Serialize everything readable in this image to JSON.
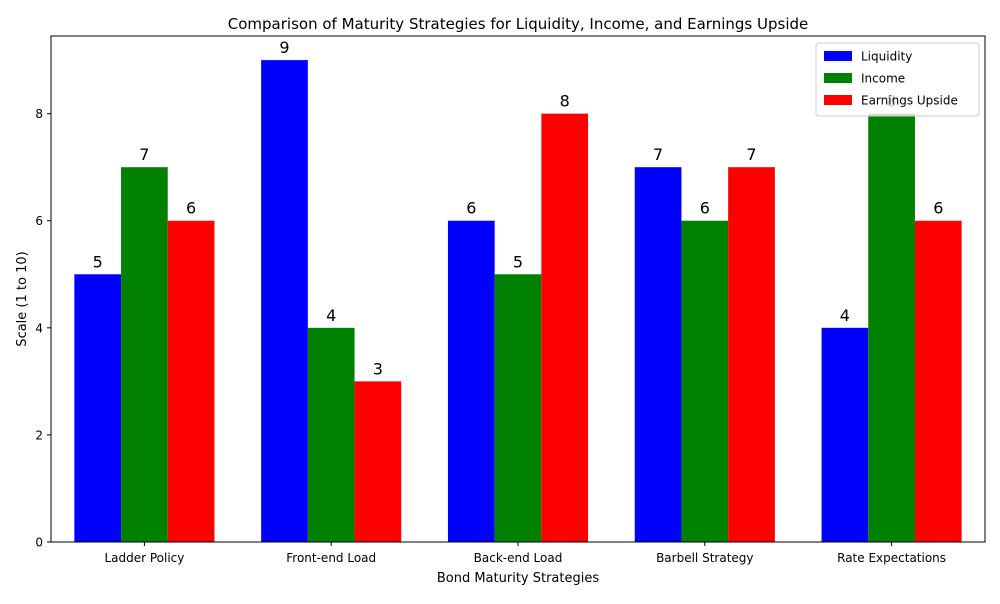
{
  "chart_data": {
    "type": "bar",
    "title": "Comparison of Maturity Strategies for Liquidity, Income, and Earnings Upside",
    "xlabel": "Bond Maturity Strategies",
    "ylabel": "Scale (1 to 10)",
    "categories": [
      "Ladder Policy",
      "Front-end Load",
      "Back-end Load",
      "Barbell Strategy",
      "Rate Expectations"
    ],
    "series": [
      {
        "name": "Liquidity",
        "color": "#0000ff",
        "values": [
          5,
          9,
          6,
          7,
          4
        ]
      },
      {
        "name": "Income",
        "color": "#008000",
        "values": [
          7,
          4,
          5,
          6,
          8
        ]
      },
      {
        "name": "Earnings Upside",
        "color": "#ff0000",
        "values": [
          6,
          3,
          8,
          7,
          6
        ]
      }
    ],
    "ylim": [
      0,
      9.45
    ],
    "yticks": [
      0,
      2,
      4,
      6,
      8
    ],
    "grid": false,
    "legend": "top-right",
    "data_labels": true
  }
}
